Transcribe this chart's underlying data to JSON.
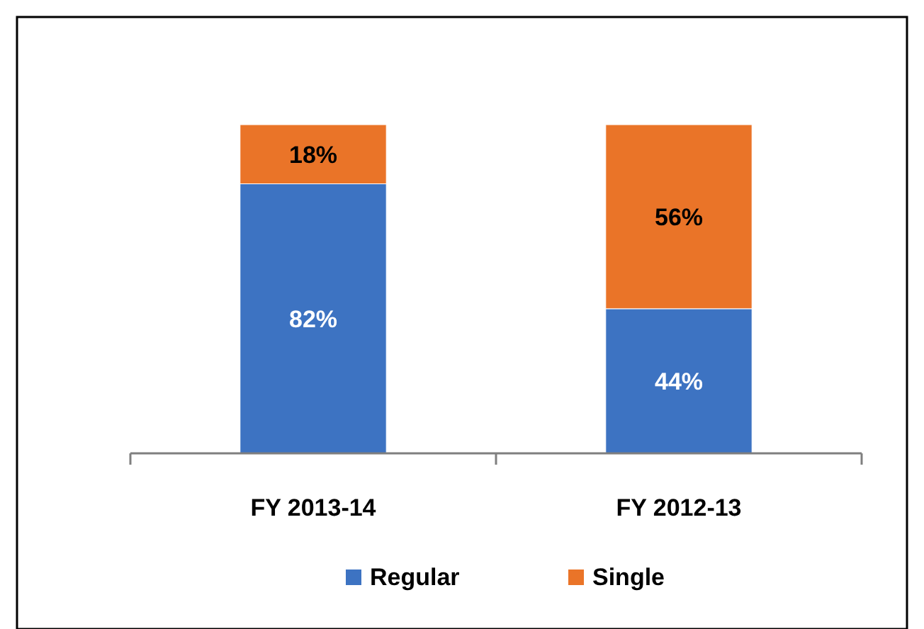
{
  "chart_data": {
    "type": "bar",
    "stacked": true,
    "categories": [
      "FY 2013-14",
      "FY 2012-13"
    ],
    "series": [
      {
        "name": "Regular",
        "color": "#3d73c2",
        "values": [
          82,
          44
        ],
        "value_labels": [
          "82%",
          "44%"
        ]
      },
      {
        "name": "Single",
        "color": "#ea7428",
        "values": [
          18,
          56
        ],
        "value_labels": [
          "18%",
          "56%"
        ]
      }
    ],
    "legend": "bottom"
  }
}
